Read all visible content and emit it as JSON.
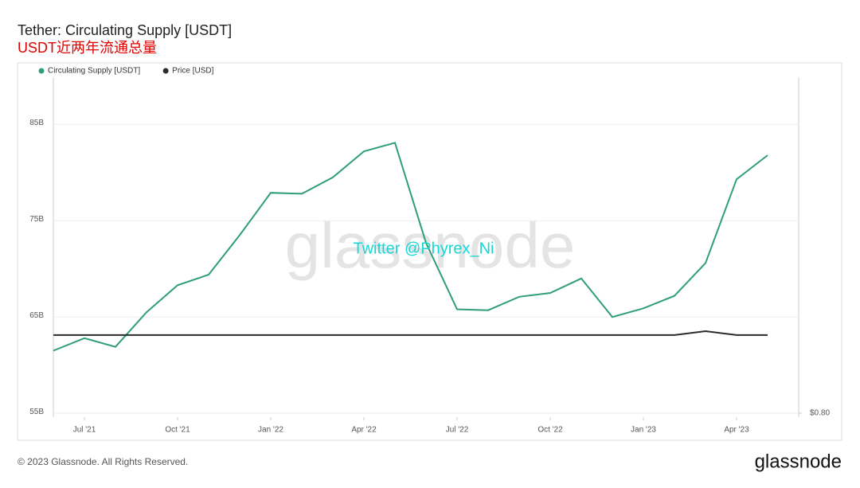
{
  "chart_data": {
    "type": "line",
    "title": "Tether: Circulating Supply [USDT]",
    "subtitle": "USDT近两年流通总量",
    "watermark": "glassnode",
    "annotation": "Twitter @Phyrex_Ni",
    "footer": "© 2023 Glassnode. All Rights Reserved.",
    "logo": "glassnode",
    "x": [
      "2021-06",
      "2021-07",
      "2021-08",
      "2021-09",
      "2021-10",
      "2021-11",
      "2021-12",
      "2022-01",
      "2022-02",
      "2022-03",
      "2022-04",
      "2022-05",
      "2022-06",
      "2022-07",
      "2022-08",
      "2022-09",
      "2022-10",
      "2022-11",
      "2022-12",
      "2023-01",
      "2023-02",
      "2023-03",
      "2023-04",
      "2023-05"
    ],
    "xlim": [
      "2021-06",
      "2023-06"
    ],
    "xticks": [
      {
        "value": "2021-07",
        "label": "Jul '21"
      },
      {
        "value": "2021-10",
        "label": "Oct '21"
      },
      {
        "value": "2022-01",
        "label": "Jan '22"
      },
      {
        "value": "2022-04",
        "label": "Apr '22"
      },
      {
        "value": "2022-07",
        "label": "Jul '22"
      },
      {
        "value": "2022-10",
        "label": "Oct '22"
      },
      {
        "value": "2023-01",
        "label": "Jan '23"
      },
      {
        "value": "2023-04",
        "label": "Apr '23"
      }
    ],
    "ylim": [
      54.6,
      89.9
    ],
    "yticks": [
      {
        "value": 55,
        "label": "55B"
      },
      {
        "value": 65,
        "label": "65B"
      },
      {
        "value": 75,
        "label": "75B"
      },
      {
        "value": 85,
        "label": "85B"
      }
    ],
    "y2lim": [
      0.79,
      1.66
    ],
    "y2ticks": [
      {
        "value": 0.8,
        "label": "$0.80"
      }
    ],
    "grid": true,
    "series": [
      {
        "name": "Circulating Supply [USDT]",
        "color": "#2f9e79",
        "values": [
          61.5,
          62.8,
          61.9,
          65.5,
          68.3,
          69.4,
          73.5,
          77.9,
          77.8,
          79.5,
          82.2,
          83.1,
          72.7,
          65.8,
          65.7,
          67.1,
          67.5,
          69,
          65,
          65.9,
          67.2,
          70.6,
          79.3,
          81.8
        ]
      },
      {
        "name": "Price [USD]",
        "color": "#2b2b2b",
        "axis": "y2",
        "values": [
          1,
          1,
          1,
          1,
          1,
          1,
          1,
          1,
          1,
          1,
          1,
          1,
          1,
          1,
          1,
          1,
          1,
          1,
          1,
          1,
          1,
          1.01,
          1,
          1
        ]
      }
    ]
  }
}
